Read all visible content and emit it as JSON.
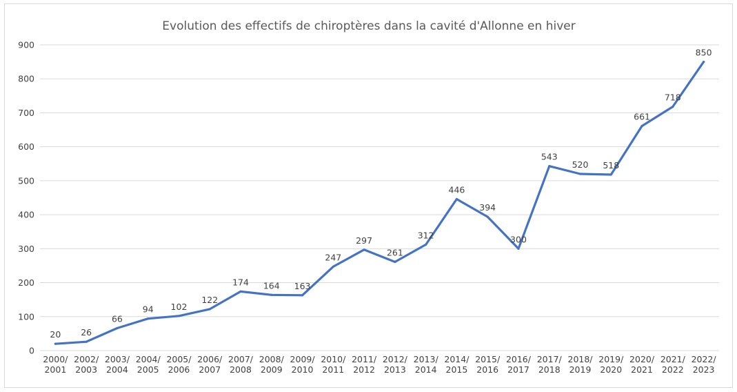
{
  "chart_data": {
    "type": "line",
    "title": "Evolution des effectifs de chiroptères dans la cavité d'Allonne en hiver",
    "xlabel": "",
    "ylabel": "",
    "ylim": [
      0,
      900
    ],
    "y_ticks": [
      "0",
      "100",
      "200",
      "300",
      "400",
      "500",
      "600",
      "700",
      "800",
      "900"
    ],
    "grid": true,
    "legend": "none",
    "line_color": "#4472c4",
    "categories": [
      [
        "2000/",
        "2001"
      ],
      [
        "2002/",
        "2003"
      ],
      [
        "2003/",
        "2004"
      ],
      [
        "2004/",
        "2005"
      ],
      [
        "2005/",
        "2006"
      ],
      [
        "2006/",
        "2007"
      ],
      [
        "2007/",
        "2008"
      ],
      [
        "2008/",
        "2009"
      ],
      [
        "2009/",
        "2010"
      ],
      [
        "2010/",
        "2011"
      ],
      [
        "2011/",
        "2012"
      ],
      [
        "2012/",
        "2013"
      ],
      [
        "2013/",
        "2014"
      ],
      [
        "2014/",
        "2015"
      ],
      [
        "2015/",
        "2016"
      ],
      [
        "2016/",
        "2017"
      ],
      [
        "2017/",
        "2018"
      ],
      [
        "2018/",
        "2019"
      ],
      [
        "2019/",
        "2020"
      ],
      [
        "2020/",
        "2021"
      ],
      [
        "2021/",
        "2022"
      ],
      [
        "2022/",
        "2023"
      ]
    ],
    "series": [
      {
        "values": [
          20,
          26,
          66,
          94,
          102,
          122,
          174,
          164,
          163,
          247,
          297,
          261,
          312,
          446,
          394,
          300,
          543,
          520,
          518,
          661,
          718,
          850
        ]
      }
    ]
  }
}
